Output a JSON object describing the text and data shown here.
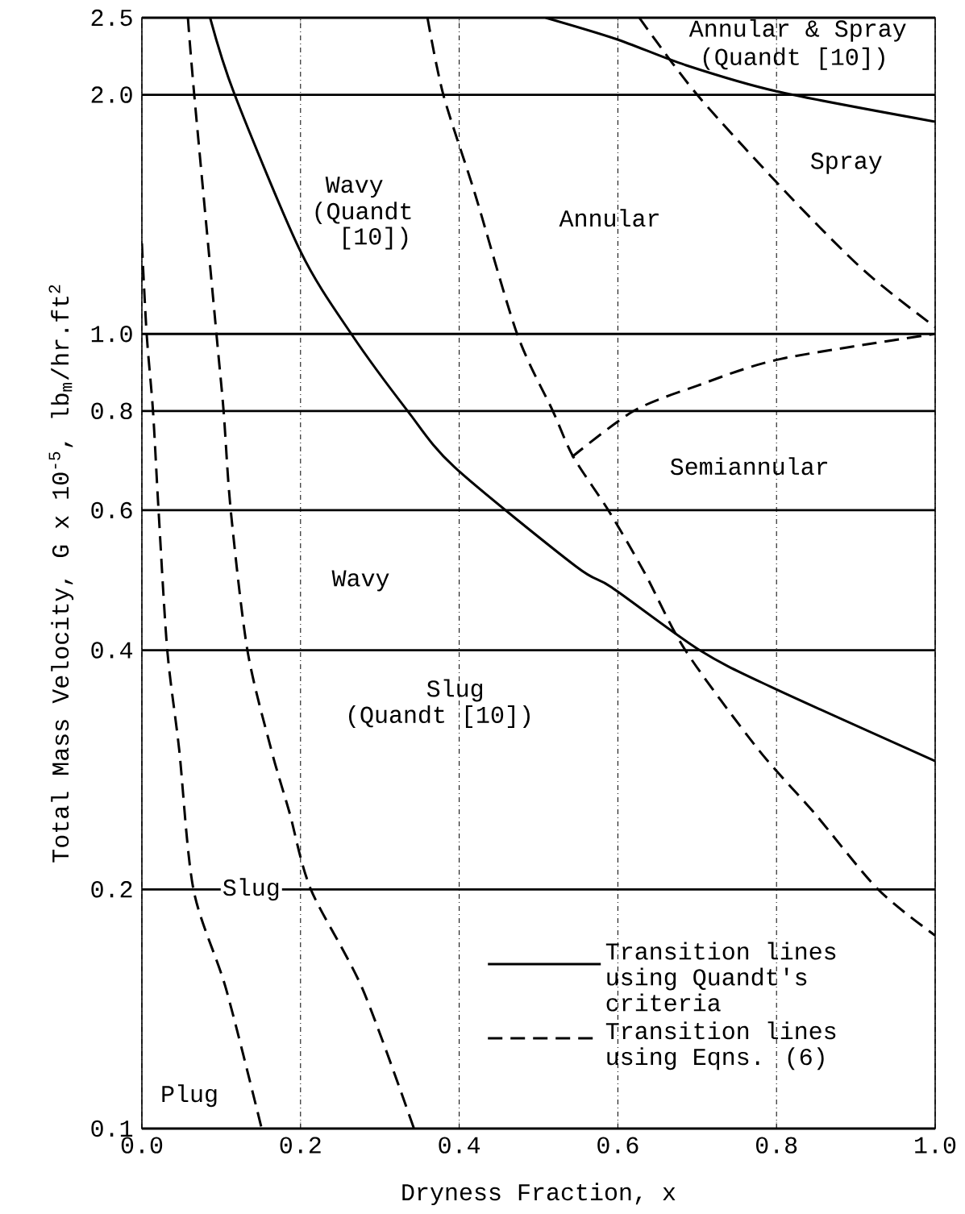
{
  "chart_data": {
    "type": "line",
    "xlabel": "Dryness Fraction, x",
    "ylabel": "Total Mass Velocity, G x 10$^{-5}$, lb$_{m}$/hr.ft$^{2}$",
    "log": "y",
    "xlim": [
      0,
      1
    ],
    "ylim": [
      0.1,
      2.5
    ],
    "xticks": [
      {
        "value": 0,
        "label": "0.0"
      },
      0.2,
      0.4,
      0.6,
      0.8,
      {
        "value": 1,
        "label": "1.0"
      }
    ],
    "yticks": [
      0.1,
      0.2,
      0.4,
      0.6,
      0.8,
      {
        "value": 1,
        "label": "1.0"
      },
      {
        "value": 2,
        "label": "2.0"
      },
      2.5
    ],
    "grid": true,
    "legend": "bottom right",
    "annotations": [
      "Annular & Spray",
      "(Quandt [10])",
      "Spray",
      "Wavy",
      "(Quandt",
      "[10])",
      "Annular",
      "Semiannular",
      "Wavy",
      "Slug",
      "(Quandt [10])",
      "Slug",
      "Plug"
    ],
    "series": [
      {
        "name": "Transition lines using Quandt's criteria",
        "color": "#000000",
        "line_style": "solid",
        "x": [
          0.086,
          0.117,
          0.2,
          0.264,
          0.335,
          0.394,
          0.547,
          0.592,
          0.703,
          0.792,
          1.0
        ],
        "values": [
          2.5,
          2.0,
          1.27,
          1.0,
          0.8,
          0.68,
          0.51,
          0.48,
          0.4,
          0.36,
          0.29
        ]
      },
      {
        "color": "#000000",
        "line_style": "solid",
        "x": [
          0.509,
          0.598,
          0.685,
          0.8,
          1.0
        ],
        "values": [
          2.5,
          2.35,
          2.18,
          2.02,
          1.85
        ]
      },
      {
        "name": "Transition lines using Eqns. (6)",
        "color": "#000000",
        "line_style": "dashed",
        "x": [
          0.0,
          0.006,
          0.014,
          0.021,
          0.032,
          0.047,
          0.065,
          0.106,
          0.151
        ],
        "values": [
          1.3,
          1.0,
          0.8,
          0.6,
          0.4,
          0.3,
          0.2,
          0.15,
          0.1
        ]
      },
      {
        "color": "#000000",
        "line_style": "dashed",
        "x": [
          0.058,
          0.066,
          0.094,
          0.103,
          0.112,
          0.133,
          0.163,
          0.186,
          0.213,
          0.278,
          0.343
        ],
        "values": [
          2.5,
          2.0,
          1.0,
          0.8,
          0.6,
          0.4,
          0.3,
          0.25,
          0.2,
          0.15,
          0.1
        ]
      },
      {
        "color": "#000000",
        "line_style": "dashed",
        "x": [
          0.36,
          0.38,
          0.42,
          0.473,
          0.518,
          0.544,
          0.588,
          0.634,
          0.685,
          0.777,
          0.847,
          0.928,
          1.0
        ],
        "values": [
          2.5,
          2.0,
          1.5,
          1.0,
          0.8,
          0.7,
          0.6,
          0.5,
          0.4,
          0.3,
          0.25,
          0.2,
          0.175
        ]
      },
      {
        "color": "#000000",
        "line_style": "dashed",
        "x": [
          0.627,
          0.7,
          0.814,
          0.911,
          1.0
        ],
        "values": [
          2.5,
          2.0,
          1.5,
          1.2,
          1.02
        ]
      },
      {
        "color": "#000000",
        "line_style": "dashed",
        "x": [
          0.542,
          0.62,
          0.699,
          0.805,
          1.0
        ],
        "values": [
          0.7,
          0.8,
          0.86,
          0.93,
          1.0
        ]
      }
    ]
  }
}
